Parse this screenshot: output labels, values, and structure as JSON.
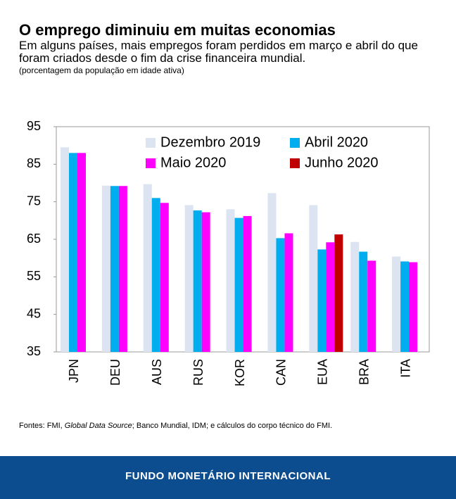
{
  "chart_data": {
    "type": "bar",
    "title": "O emprego diminuiu em muitas economias",
    "subtitle": "Em alguns países, mais empregos foram perdidos em março e abril do que foram criados desde o fim da crise financeira mundial.",
    "note": "(porcentagem da população em idade ativa)",
    "categories": [
      "JPN",
      "DEU",
      "AUS",
      "RUS",
      "KOR",
      "CAN",
      "EUA",
      "BRA",
      "ITA"
    ],
    "series": [
      {
        "name": "Dezembro 2019",
        "color": "#dce3f1",
        "values": [
          89.5,
          79.3,
          79.7,
          74.1,
          73.0,
          77.3,
          74.1,
          64.3,
          60.4
        ]
      },
      {
        "name": "Abril 2020",
        "color": "#00aeef",
        "values": [
          88.0,
          79.2,
          76.0,
          72.7,
          70.7,
          65.3,
          62.3,
          61.7,
          59.1
        ]
      },
      {
        "name": "Maio 2020",
        "color": "#ff00ff",
        "values": [
          88.0,
          79.2,
          74.7,
          72.2,
          71.2,
          66.6,
          64.2,
          59.3,
          58.9
        ]
      },
      {
        "name": "Junho 2020",
        "color": "#c00000",
        "values": [
          null,
          null,
          null,
          null,
          null,
          null,
          66.3,
          null,
          null
        ]
      }
    ],
    "ylim": [
      35,
      95
    ],
    "yticks": [
      35,
      45,
      55,
      65,
      75,
      85,
      95
    ],
    "source": [
      "Fontes: FMI, ",
      "Global Data Source",
      "; Banco Mundial, IDM; e cálculos do corpo técnico do FMI."
    ],
    "footer": "FUNDO MONETÁRIO INTERNACIONAL"
  }
}
